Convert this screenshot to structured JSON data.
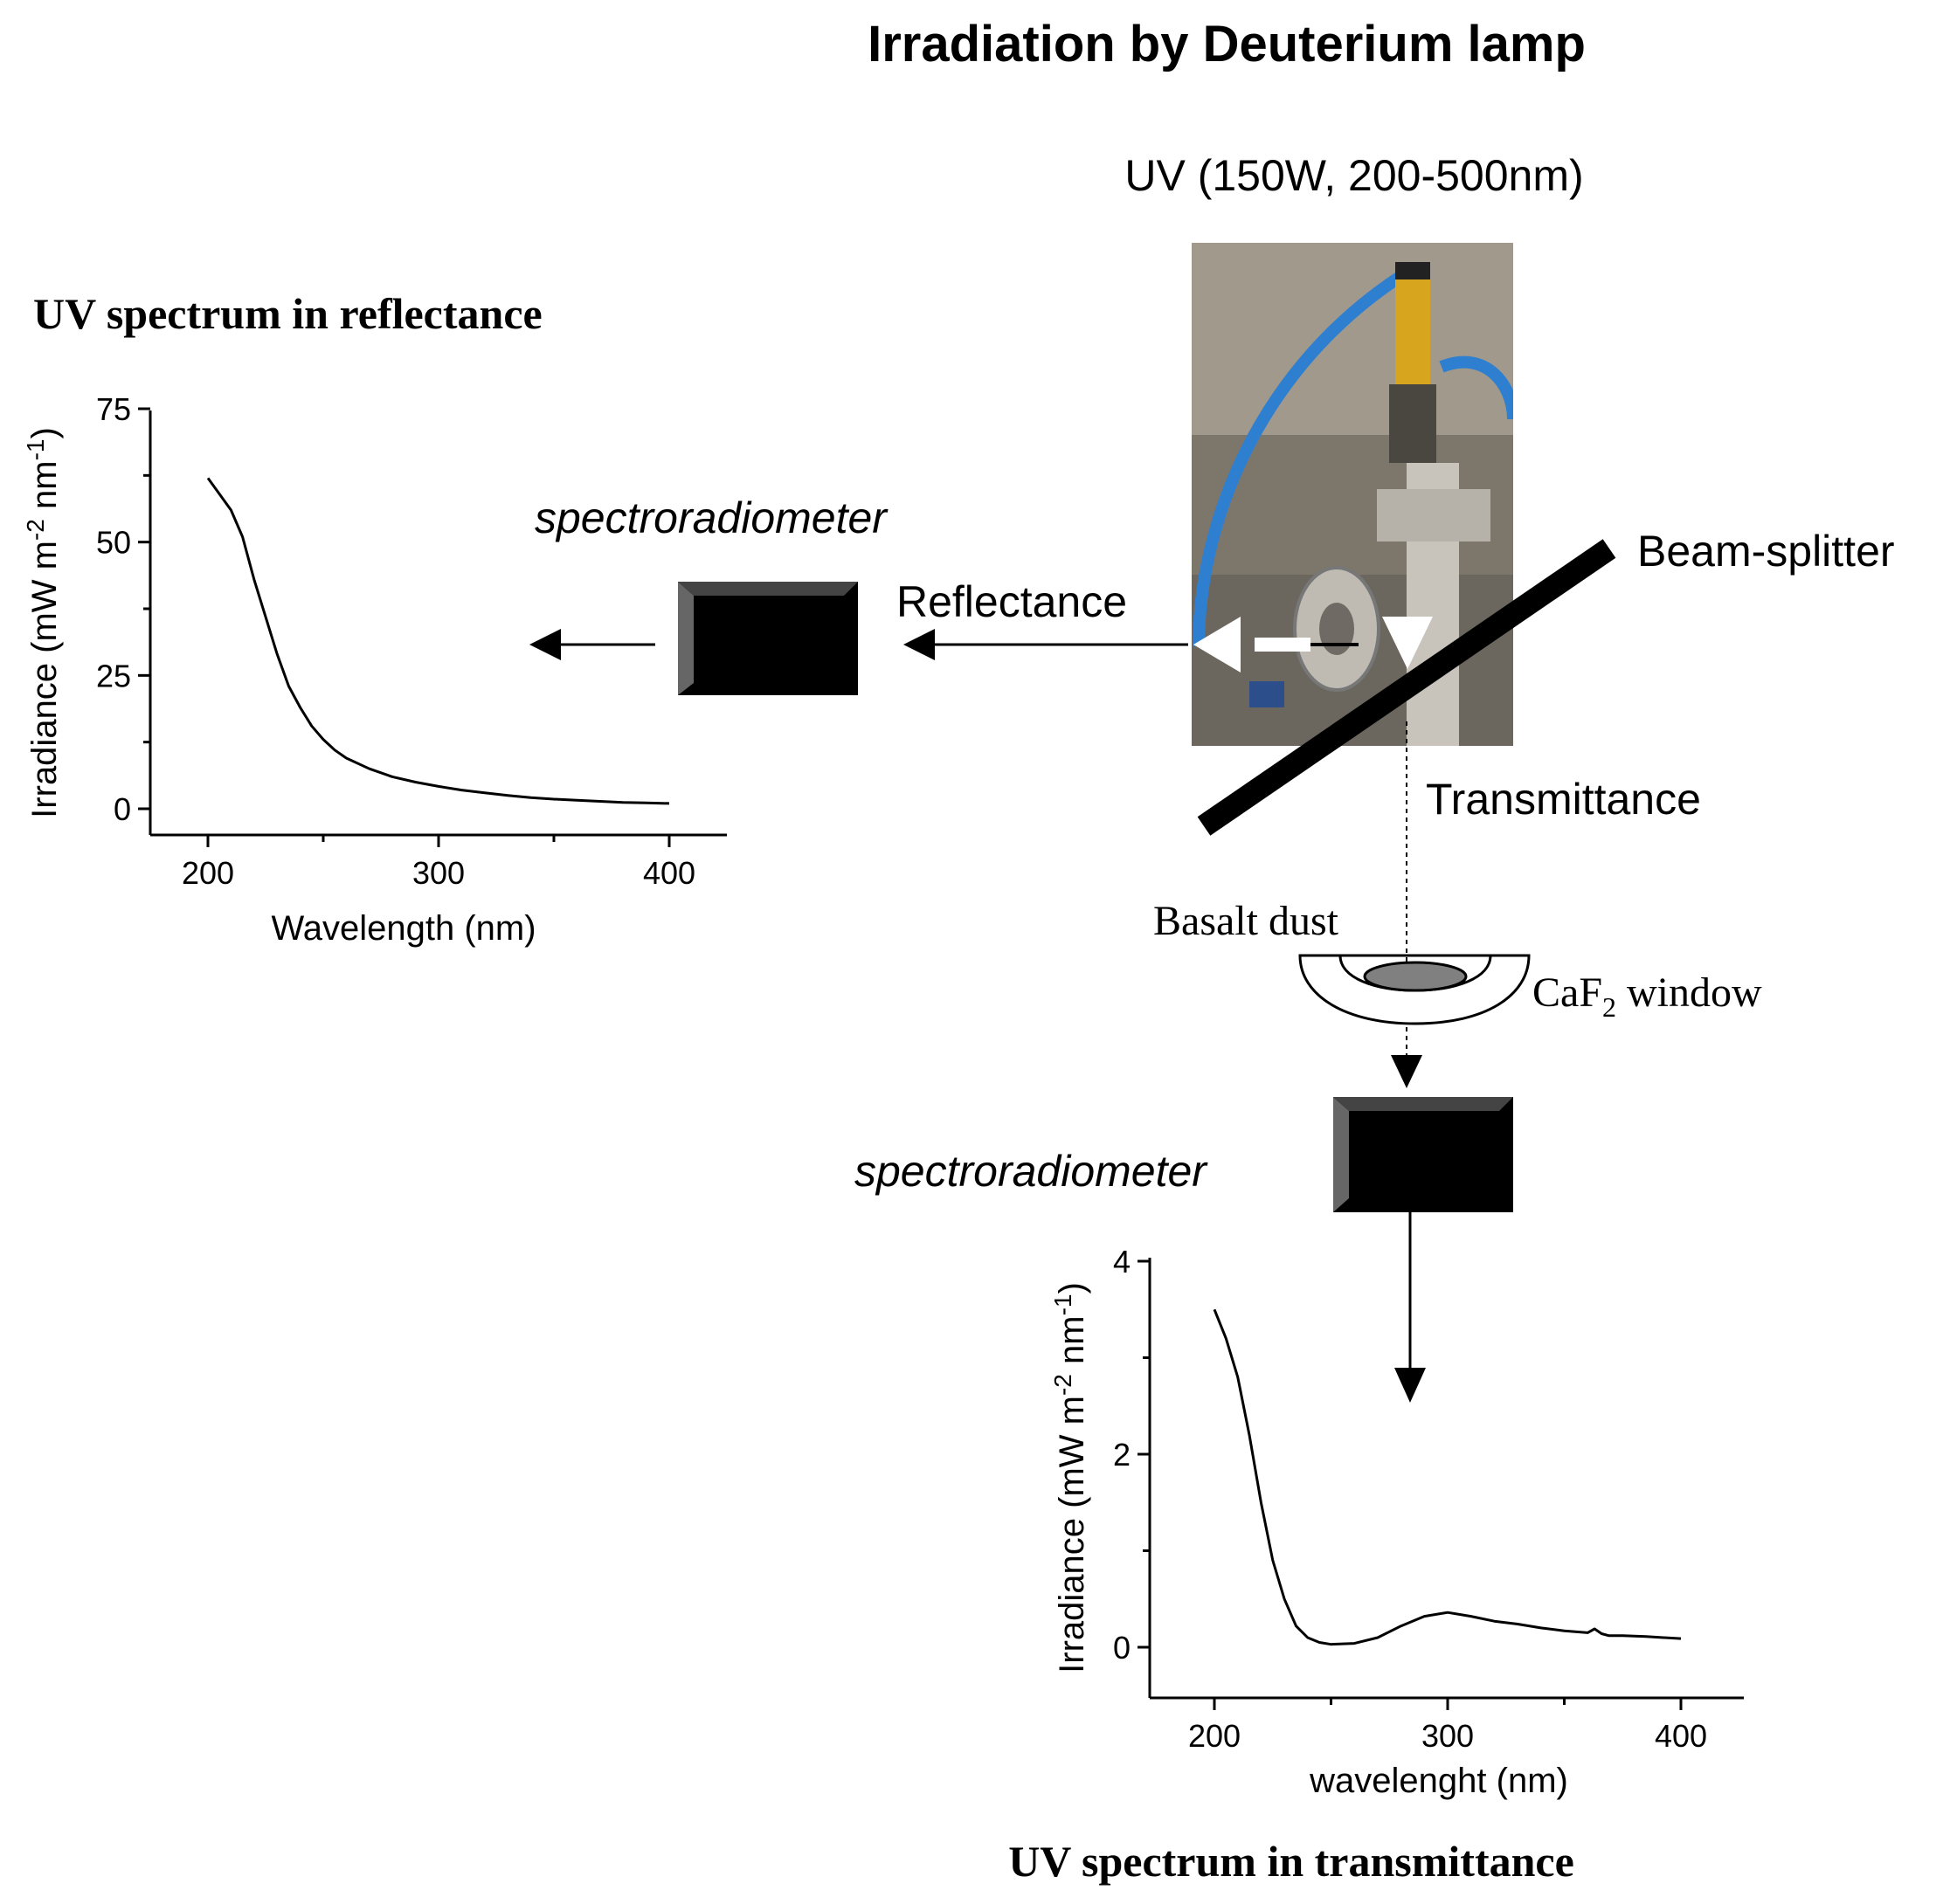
{
  "title": "Irradiation by Deuterium lamp",
  "lamp_label": "UV (150W, 200-500nm)",
  "beam_splitter_label": "Beam-splitter",
  "reflectance_label": "Reflectance",
  "transmittance_label": "Transmittance",
  "spectroradiometer_label": "spectroradiometer",
  "basalt_dust_label": "Basalt dust",
  "window_label": {
    "main": "CaF",
    "subscript": "2",
    "suffix": " window"
  },
  "photo": {
    "description": "Deuterium lamp apparatus with blue cables",
    "colors": {
      "background": "#8c8577",
      "cable": "#2f7fd1",
      "lamp_body": "#d8a61e",
      "metal": "#c8c4bc"
    }
  },
  "chart_data": [
    {
      "type": "line",
      "title": "UV spectrum in reflectance",
      "xlabel": "Wavelength (nm)",
      "ylabel": {
        "text": "Irradiance (mW m",
        "sup1": "-2",
        "mid": " nm",
        "sup2": "-1",
        "end": ")"
      },
      "xlim": [
        175,
        425
      ],
      "ylim": [
        -5,
        75
      ],
      "xticks": [
        "200",
        "300",
        "400"
      ],
      "yticks": [
        "0",
        "25",
        "50",
        "75"
      ],
      "xtick_values": [
        200,
        300,
        400
      ],
      "ytick_values": [
        0,
        25,
        50,
        75
      ],
      "x": [
        200,
        210,
        215,
        220,
        225,
        230,
        235,
        240,
        245,
        250,
        255,
        260,
        270,
        280,
        290,
        300,
        310,
        320,
        330,
        340,
        350,
        360,
        370,
        380,
        390,
        400
      ],
      "y": [
        62,
        56,
        51,
        43,
        36,
        29,
        23,
        19,
        15.5,
        13,
        11,
        9.5,
        7.5,
        6,
        5,
        4.2,
        3.5,
        3,
        2.5,
        2.1,
        1.8,
        1.6,
        1.4,
        1.2,
        1.1,
        1.0
      ]
    },
    {
      "type": "line",
      "title": "UV spectrum in transmittance",
      "xlabel": "wavelenght (nm)",
      "ylabel": {
        "text": "Irradiance (mW m",
        "sup1": "-2",
        "mid": " nm",
        "sup2": "-1",
        "end": ")"
      },
      "xlim": [
        175,
        425
      ],
      "ylim": [
        -0.25,
        4
      ],
      "xticks": [
        "200",
        "300",
        "400"
      ],
      "yticks": [
        "0",
        "2",
        "4"
      ],
      "xtick_values": [
        200,
        300,
        400
      ],
      "ytick_values": [
        0,
        2,
        4
      ],
      "x": [
        200,
        205,
        210,
        215,
        220,
        225,
        230,
        235,
        240,
        245,
        250,
        260,
        270,
        280,
        290,
        300,
        310,
        320,
        330,
        340,
        350,
        360,
        363,
        366,
        369,
        375,
        385,
        400
      ],
      "y": [
        3.5,
        3.2,
        2.8,
        2.2,
        1.5,
        0.9,
        0.5,
        0.22,
        0.1,
        0.05,
        0.03,
        0.04,
        0.1,
        0.22,
        0.32,
        0.36,
        0.32,
        0.27,
        0.24,
        0.2,
        0.17,
        0.15,
        0.19,
        0.14,
        0.12,
        0.12,
        0.11,
        0.09
      ]
    }
  ]
}
